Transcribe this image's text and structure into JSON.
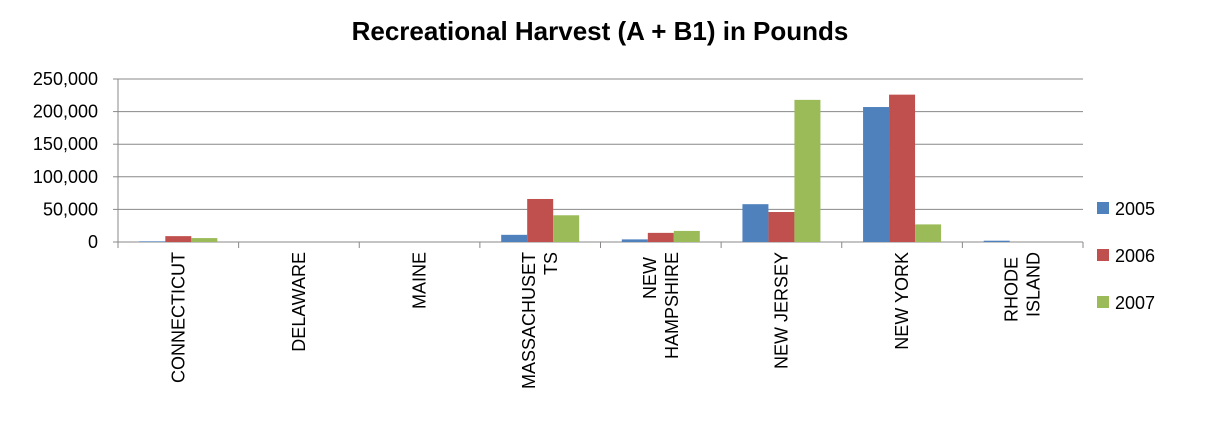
{
  "chart_data": {
    "type": "bar",
    "title": "Recreational Harvest (A + B1) in Pounds",
    "categories": [
      "CONNECTICUT",
      "DELAWARE",
      "MAINE",
      "MASSACHUSETTS",
      "NEW HAMPSHIRE",
      "NEW JERSEY",
      "NEW YORK",
      "RHODE ISLAND"
    ],
    "series": [
      {
        "name": "2005",
        "color": "#4f81bd",
        "values": [
          1000,
          0,
          0,
          11000,
          4000,
          58000,
          207000,
          2000
        ]
      },
      {
        "name": "2006",
        "color": "#c0504d",
        "values": [
          9000,
          0,
          0,
          66000,
          14000,
          46000,
          226000,
          0
        ]
      },
      {
        "name": "2007",
        "color": "#9bbb59",
        "values": [
          6000,
          0,
          0,
          41000,
          17000,
          218000,
          27000,
          0
        ]
      }
    ],
    "ylim": [
      0,
      250000
    ],
    "yticks": [
      0,
      {
        "value": 50000,
        "label": "50,000"
      },
      {
        "value": 100000,
        "label": "100,000"
      },
      {
        "value": 150000,
        "label": "150,000"
      },
      {
        "value": 200000,
        "label": "200,000"
      },
      {
        "value": 250000,
        "label": "250,000"
      }
    ],
    "grid": true,
    "legend": "right"
  }
}
